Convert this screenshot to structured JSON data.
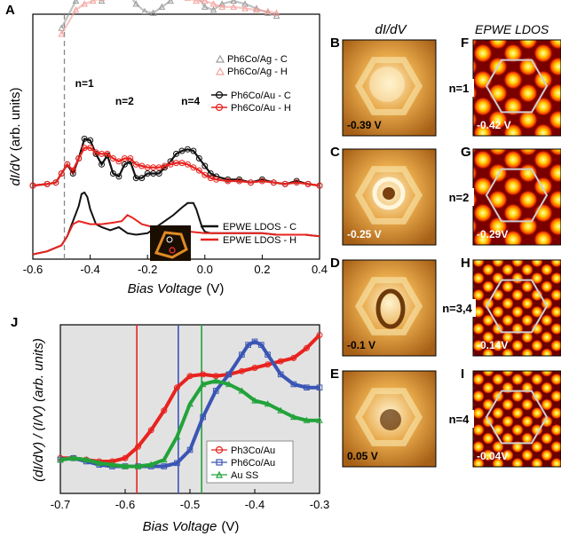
{
  "colors": {
    "C_black": "#111111",
    "H_red": "#e8231f",
    "Ag_gray": "#9a9a9a",
    "Ag_pink": "#f4a09b",
    "Ph3Co_red": "#e8231f",
    "Ph6Co_blue": "#3a55b4",
    "AuSS_green": "#22a33a",
    "panel_gray": "#e2e2e2"
  },
  "chart_data": [
    {
      "type": "line",
      "panel": "A",
      "xlabel": "Bias Voltage",
      "xunit": "(V)",
      "ylabel": "dI/dV (arb. units)",
      "xlim": [
        -0.6,
        0.4
      ],
      "xticks": [
        "-0.6",
        "-0.4",
        "-0.2",
        "0.0",
        "0.2",
        "0.4"
      ],
      "marker_vline_x": -0.49,
      "peak_labels": [
        {
          "text": "n=1",
          "x": -0.42
        },
        {
          "text": "n=2",
          "x": -0.28
        },
        {
          "text": "n=4",
          "x": -0.05
        }
      ],
      "series": [
        {
          "name": "Ph6Co/Ag - C",
          "marker": "triangle",
          "color": "#9a9a9a",
          "x": [
            -0.5,
            -0.45,
            -0.42,
            -0.39,
            -0.36,
            -0.33,
            -0.3,
            -0.27,
            -0.24,
            -0.21,
            -0.18,
            -0.15,
            -0.12,
            -0.09,
            -0.06,
            -0.03,
            0.0,
            0.03,
            0.06,
            0.1,
            0.14,
            0.18,
            0.22,
            0.25
          ],
          "y": [
            0.72,
            0.9,
            1.0,
            0.98,
            0.9,
            0.96,
            1.0,
            0.96,
            0.88,
            0.83,
            0.82,
            0.86,
            0.9,
            0.95,
            1.0,
            0.94,
            0.86,
            0.84,
            0.88,
            0.9,
            0.88,
            0.85,
            0.82,
            0.8
          ]
        },
        {
          "name": "Ph6Co/Ag - H",
          "marker": "triangle",
          "color": "#f4a09b",
          "x": [
            -0.5,
            -0.45,
            -0.42,
            -0.39,
            -0.36,
            -0.33,
            -0.3,
            -0.27,
            -0.24,
            -0.21,
            -0.18,
            -0.15,
            -0.12,
            -0.09,
            -0.06,
            -0.03,
            0.0,
            0.03,
            0.06,
            0.1,
            0.14,
            0.18,
            0.22,
            0.25
          ],
          "y": [
            0.68,
            0.84,
            0.88,
            0.9,
            0.92,
            0.94,
            0.95,
            0.97,
            0.98,
            0.97,
            0.95,
            0.94,
            0.93,
            0.93,
            0.92,
            0.9,
            0.9,
            0.88,
            0.86,
            0.86,
            0.85,
            0.84,
            0.83,
            0.82
          ]
        },
        {
          "name": "Ph6Co/Au - C",
          "marker": "circle",
          "color": "#111111",
          "x": [
            -0.6,
            -0.55,
            -0.52,
            -0.5,
            -0.48,
            -0.46,
            -0.44,
            -0.42,
            -0.4,
            -0.38,
            -0.36,
            -0.34,
            -0.32,
            -0.3,
            -0.28,
            -0.26,
            -0.24,
            -0.22,
            -0.2,
            -0.18,
            -0.16,
            -0.14,
            -0.12,
            -0.1,
            -0.08,
            -0.06,
            -0.04,
            -0.02,
            0.0,
            0.02,
            0.04,
            0.08,
            0.12,
            0.16,
            0.2,
            0.24,
            0.28,
            0.32,
            0.36,
            0.4
          ],
          "y": [
            0.42,
            0.43,
            0.44,
            0.5,
            0.56,
            0.5,
            0.6,
            0.73,
            0.72,
            0.63,
            0.56,
            0.62,
            0.5,
            0.48,
            0.56,
            0.58,
            0.47,
            0.47,
            0.5,
            0.5,
            0.5,
            0.54,
            0.58,
            0.63,
            0.65,
            0.66,
            0.65,
            0.6,
            0.55,
            0.5,
            0.48,
            0.46,
            0.46,
            0.44,
            0.46,
            0.44,
            0.43,
            0.45,
            0.43,
            0.42
          ]
        },
        {
          "name": "Ph6Co/Au - H",
          "marker": "circle",
          "color": "#e8231f",
          "x": [
            -0.6,
            -0.55,
            -0.52,
            -0.5,
            -0.48,
            -0.46,
            -0.44,
            -0.42,
            -0.4,
            -0.38,
            -0.36,
            -0.34,
            -0.32,
            -0.3,
            -0.28,
            -0.26,
            -0.24,
            -0.22,
            -0.2,
            -0.18,
            -0.16,
            -0.14,
            -0.12,
            -0.1,
            -0.08,
            -0.06,
            -0.04,
            -0.02,
            0.0,
            0.02,
            0.04,
            0.08,
            0.12,
            0.16,
            0.2,
            0.24,
            0.28,
            0.32,
            0.36,
            0.4
          ],
          "y": [
            0.42,
            0.43,
            0.44,
            0.5,
            0.56,
            0.52,
            0.6,
            0.67,
            0.67,
            0.64,
            0.63,
            0.63,
            0.6,
            0.58,
            0.6,
            0.6,
            0.56,
            0.55,
            0.54,
            0.54,
            0.54,
            0.55,
            0.56,
            0.57,
            0.57,
            0.56,
            0.54,
            0.52,
            0.49,
            0.47,
            0.46,
            0.45,
            0.45,
            0.44,
            0.45,
            0.44,
            0.43,
            0.44,
            0.43,
            0.42
          ]
        },
        {
          "name": "EPWE LDOS - C",
          "marker": "none",
          "color": "#111111",
          "x": [
            -0.6,
            -0.55,
            -0.5,
            -0.48,
            -0.46,
            -0.44,
            -0.43,
            -0.42,
            -0.41,
            -0.4,
            -0.38,
            -0.36,
            -0.33,
            -0.3,
            -0.27,
            -0.24,
            -0.2,
            -0.17,
            -0.14,
            -0.11,
            -0.08,
            -0.06,
            -0.04,
            -0.03,
            -0.02,
            -0.01,
            0.0,
            0.02,
            0.05,
            0.1,
            0.15,
            0.2,
            0.25,
            0.3,
            0.35,
            0.4
          ],
          "y": [
            0.02,
            0.04,
            0.08,
            0.14,
            0.24,
            0.34,
            0.42,
            0.43,
            0.4,
            0.32,
            0.22,
            0.2,
            0.18,
            0.2,
            0.16,
            0.15,
            0.16,
            0.2,
            0.24,
            0.28,
            0.33,
            0.36,
            0.36,
            0.32,
            0.26,
            0.2,
            0.17,
            0.16,
            0.16,
            0.16,
            0.16,
            0.16,
            0.15,
            0.15,
            0.15,
            0.14
          ]
        },
        {
          "name": "EPWE LDOS - H",
          "marker": "none",
          "color": "#e8231f",
          "x": [
            -0.6,
            -0.55,
            -0.5,
            -0.48,
            -0.46,
            -0.44,
            -0.42,
            -0.4,
            -0.36,
            -0.32,
            -0.29,
            -0.27,
            -0.25,
            -0.22,
            -0.18,
            -0.14,
            -0.1,
            -0.05,
            0.0,
            0.05,
            0.1,
            0.15,
            0.2,
            0.25,
            0.3,
            0.35,
            0.4
          ],
          "y": [
            0.02,
            0.04,
            0.08,
            0.14,
            0.22,
            0.24,
            0.23,
            0.22,
            0.22,
            0.23,
            0.24,
            0.28,
            0.26,
            0.22,
            0.2,
            0.19,
            0.18,
            0.17,
            0.16,
            0.16,
            0.16,
            0.16,
            0.16,
            0.15,
            0.15,
            0.15,
            0.14
          ]
        }
      ]
    },
    {
      "type": "line",
      "panel": "J",
      "xlabel": "Bias Voltage",
      "xunit": "(V)",
      "ylabel": "(dI/dV) / (I/V) (arb. units)",
      "xlim": [
        -0.7,
        -0.3
      ],
      "xticks": [
        "-0.7",
        "-0.6",
        "-0.5",
        "-0.4",
        "-0.3"
      ],
      "vlines": [
        {
          "x": -0.582,
          "color": "#e8231f"
        },
        {
          "x": -0.518,
          "color": "#3a55b4"
        },
        {
          "x": -0.482,
          "color": "#22a33a"
        }
      ],
      "series": [
        {
          "name": "Ph3Co/Au",
          "marker": "circle",
          "color": "#e8231f",
          "x": [
            -0.7,
            -0.68,
            -0.66,
            -0.64,
            -0.62,
            -0.6,
            -0.58,
            -0.56,
            -0.54,
            -0.52,
            -0.5,
            -0.48,
            -0.46,
            -0.44,
            -0.42,
            -0.4,
            -0.38,
            -0.36,
            -0.34,
            -0.32,
            -0.3
          ],
          "y": [
            0.15,
            0.15,
            0.14,
            0.13,
            0.13,
            0.15,
            0.22,
            0.32,
            0.44,
            0.58,
            0.65,
            0.66,
            0.65,
            0.66,
            0.68,
            0.7,
            0.72,
            0.74,
            0.76,
            0.82,
            0.9
          ]
        },
        {
          "name": "Ph6Co/Au",
          "marker": "square",
          "color": "#3a55b4",
          "x": [
            -0.7,
            -0.68,
            -0.66,
            -0.64,
            -0.62,
            -0.6,
            -0.58,
            -0.56,
            -0.54,
            -0.52,
            -0.5,
            -0.48,
            -0.46,
            -0.44,
            -0.42,
            -0.41,
            -0.4,
            -0.39,
            -0.38,
            -0.36,
            -0.34,
            -0.32,
            -0.3
          ],
          "y": [
            0.14,
            0.15,
            0.13,
            0.11,
            0.1,
            0.1,
            0.1,
            0.1,
            0.1,
            0.12,
            0.2,
            0.4,
            0.56,
            0.66,
            0.78,
            0.84,
            0.86,
            0.84,
            0.78,
            0.66,
            0.6,
            0.58,
            0.58
          ]
        },
        {
          "name": "Au SS",
          "marker": "triangle",
          "color": "#22a33a",
          "x": [
            -0.7,
            -0.68,
            -0.66,
            -0.64,
            -0.62,
            -0.6,
            -0.58,
            -0.56,
            -0.54,
            -0.52,
            -0.5,
            -0.48,
            -0.46,
            -0.44,
            -0.42,
            -0.4,
            -0.38,
            -0.36,
            -0.34,
            -0.32,
            -0.3
          ],
          "y": [
            0.14,
            0.15,
            0.14,
            0.12,
            0.11,
            0.1,
            0.1,
            0.11,
            0.14,
            0.28,
            0.48,
            0.6,
            0.62,
            0.6,
            0.56,
            0.5,
            0.48,
            0.44,
            0.4,
            0.38,
            0.38
          ]
        }
      ]
    }
  ],
  "panelA": {
    "letter": "A",
    "ylabel_pre": "dI/dV",
    "ylabel_post": " (arb. units)",
    "legend_ag": [
      "Ph6Co/Ag - C",
      "Ph6Co/Ag - H"
    ],
    "legend_au": [
      "Ph6Co/Au - C",
      "Ph6Co/Au - H"
    ],
    "legend_epwe": [
      "EPWE LDOS - C",
      "EPWE LDOS - H"
    ],
    "xlabel_italic": "Bias Voltage",
    "xlabel_unit": "(V)"
  },
  "panelJ": {
    "letter": "J",
    "ylabel_text": "(dI/dV) / (I/V) (arb. units)",
    "legend": [
      "Ph3Co/Au",
      "Ph6Co/Au",
      "Au SS"
    ],
    "xlabel_italic": "Bias Voltage",
    "xlabel_unit": "(V)"
  },
  "images": {
    "col1_title": "dI/dV",
    "col2_title": "EPWE LDOS",
    "rows": [
      {
        "left_letter": "B",
        "right_letter": "F",
        "left_value": "-0.39 V",
        "right_value": "-0.42 V",
        "n_label": "n=1"
      },
      {
        "left_letter": "C",
        "right_letter": "G",
        "left_value": "-0.25 V",
        "right_value": "-0.29V",
        "n_label": "n=2"
      },
      {
        "left_letter": "D",
        "right_letter": "H",
        "left_value": "-0.1 V",
        "right_value": "-0.14V",
        "n_label": "n=3,4"
      },
      {
        "left_letter": "E",
        "right_letter": "I",
        "left_value": "0.05 V",
        "right_value": "-0.04V",
        "n_label": "n=4"
      }
    ]
  }
}
